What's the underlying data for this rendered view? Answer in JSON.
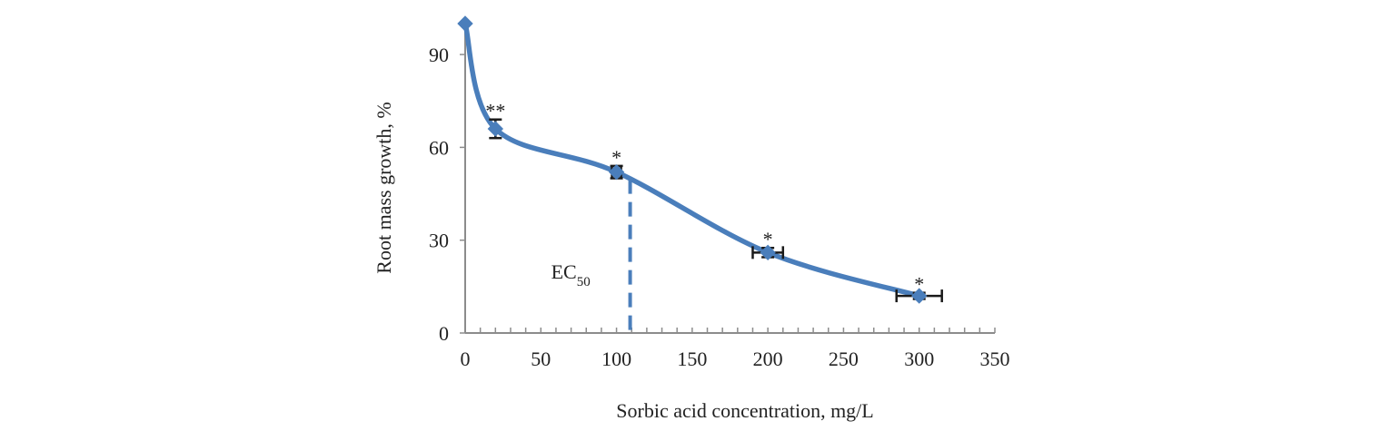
{
  "chart_data": {
    "type": "line",
    "title": "",
    "xlabel": "Sorbic acid concentration, mg/L",
    "ylabel": "Root mass growth, %",
    "xlim": [
      0,
      350
    ],
    "ylim": [
      0,
      100
    ],
    "x_ticks": [
      "0",
      "50",
      "100",
      "150",
      "200",
      "250",
      "300",
      "350"
    ],
    "y_ticks": [
      "0",
      "30",
      "60",
      "90"
    ],
    "grid": false,
    "legend": "none",
    "series": [
      {
        "points": [
          {
            "x": 0,
            "y": 100,
            "x_err": 0,
            "y_err": 0,
            "sig": ""
          },
          {
            "x": 20,
            "y": 66,
            "x_err": 0,
            "y_err": 3,
            "sig": "**"
          },
          {
            "x": 100,
            "y": 52,
            "x_err": 3,
            "y_err": 2,
            "sig": "*"
          },
          {
            "x": 200,
            "y": 26,
            "x_err": 10,
            "y_err": 1.5,
            "sig": "*"
          },
          {
            "x": 300,
            "y": 12,
            "x_err": 15,
            "y_err": 1,
            "sig": "*"
          }
        ],
        "color": "#4a7ebb"
      }
    ],
    "annotations": {
      "ec50": {
        "label": "EC",
        "subscript": "50",
        "x": 109
      }
    }
  }
}
